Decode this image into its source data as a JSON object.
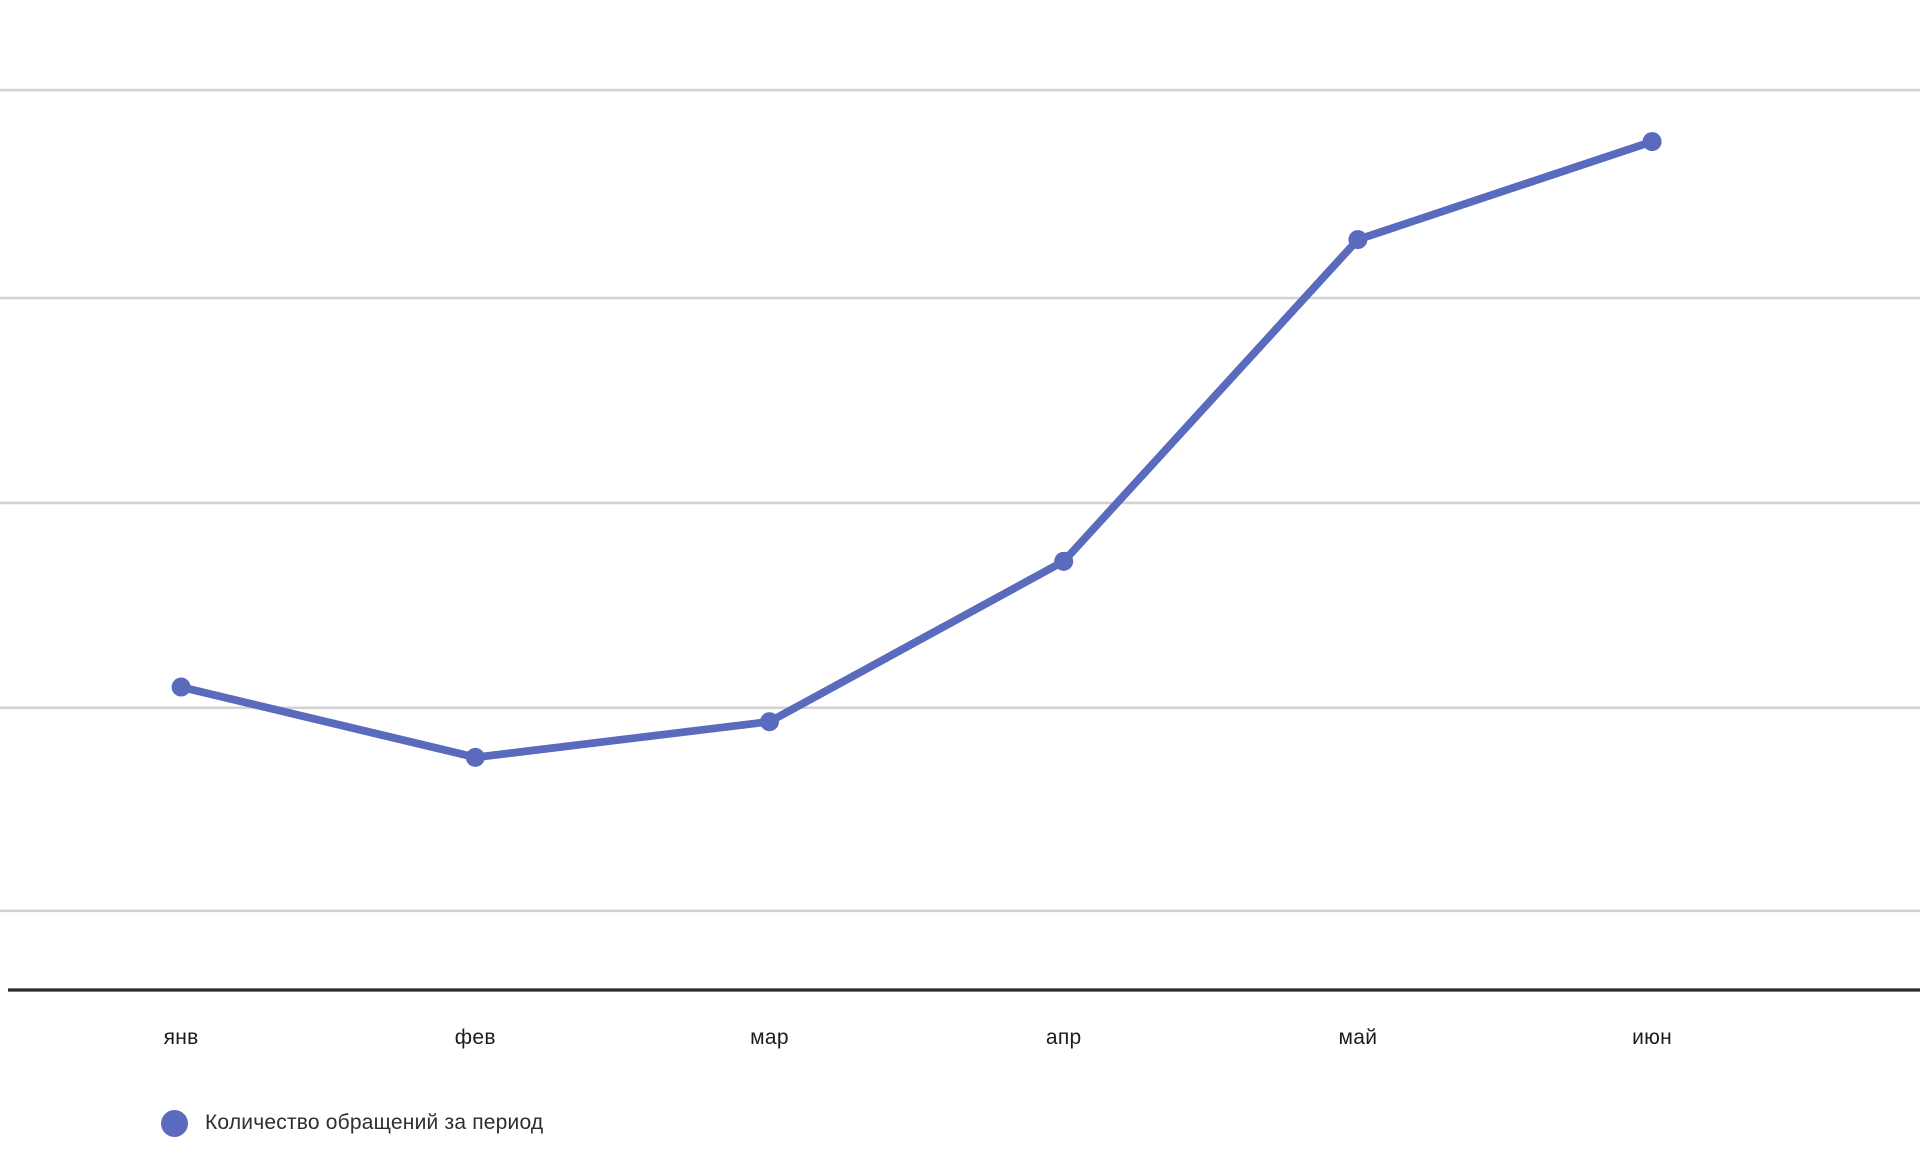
{
  "chart_data": {
    "type": "line",
    "categories": [
      "янв",
      "фев",
      "мар",
      "апр",
      "май",
      "июн"
    ],
    "series": [
      {
        "name": "Количество обращений за период",
        "values": [
          30.6,
          23.5,
          27.1,
          43.3,
          75.8,
          85.7
        ]
      }
    ],
    "title": "",
    "xlabel": "",
    "ylabel": "",
    "ylim": [
      0,
      100
    ],
    "y_axis": {
      "tick_labels_visible": false,
      "gridline_values": [
        8.0,
        28.5,
        49.2,
        69.9,
        90.9
      ],
      "grid": "horizontal-only"
    },
    "x_axis": {
      "tick_labels_visible": true,
      "baseline_visible": true
    },
    "legend": {
      "position": "bottom-left",
      "entries": [
        {
          "label": "Количество обращений за период",
          "marker": "circle",
          "color": "#5a6abd"
        }
      ]
    },
    "colors": {
      "series": "#5a6abd",
      "point": "#5a6abd",
      "gridline": "#d3d3d3",
      "axis_line": "#2b2b2b",
      "tick_text": "#1c1c1c",
      "legend_text": "#2e2e2e",
      "background": "#ffffff"
    }
  }
}
